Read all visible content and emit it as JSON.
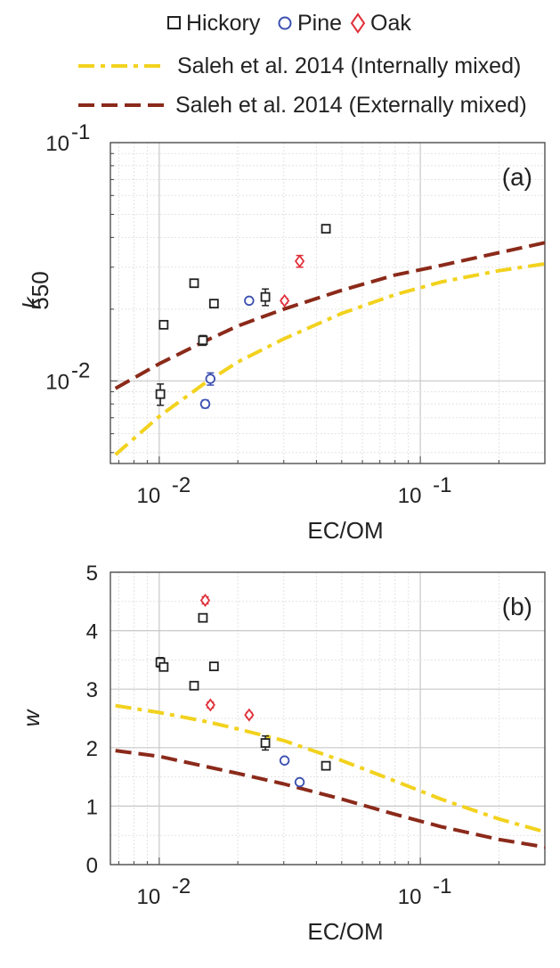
{
  "legend": {
    "markers": [
      {
        "label": "Hickory",
        "marker": "square",
        "color": "#222222"
      },
      {
        "label": "Pine",
        "marker": "circle",
        "color": "#3a4fb0"
      },
      {
        "label": "Oak",
        "marker": "diamond",
        "color": "#e0303a"
      }
    ],
    "lines": [
      {
        "label": "Saleh et al. 2014 (Internally mixed)",
        "style": "dashdot",
        "color": "#f2d21e"
      },
      {
        "label": "Saleh et al. 2014 (Externally mixed)",
        "style": "dashed",
        "color": "#8b2a1a"
      }
    ]
  },
  "colors": {
    "hickory": "#222222",
    "pine": "#3a4fb0",
    "oak": "#e0303a",
    "internal": "#f2d21e",
    "external": "#8b2a1a",
    "grid_major": "#c8c8c8",
    "grid_minor": "#e3e3e3"
  },
  "chart_data": [
    {
      "type": "scatter",
      "panel_label": "(a)",
      "xlabel": "EC/OM",
      "ylabel": "k",
      "ylabel_subscript": "550",
      "xscale": "log",
      "yscale": "log",
      "xlim": [
        0.0065,
        0.3
      ],
      "ylim": [
        0.0045,
        0.1
      ],
      "x_tick_labels": [
        {
          "value": 0.01,
          "base": "10",
          "exp": "-2"
        },
        {
          "value": 0.1,
          "base": "10",
          "exp": "-1"
        }
      ],
      "y_tick_labels": [
        {
          "value": 0.01,
          "base": "10",
          "exp": "-2"
        },
        {
          "value": 0.1,
          "base": "10",
          "exp": "-1"
        }
      ],
      "grid": true,
      "series": [
        {
          "name": "Hickory",
          "marker": "square",
          "points": [
            {
              "x": 0.0101,
              "y": 0.0088,
              "err": 0.0009
            },
            {
              "x": 0.0104,
              "y": 0.0172,
              "err": 0.0003
            },
            {
              "x": 0.0136,
              "y": 0.0257,
              "err": 0.0007
            },
            {
              "x": 0.0147,
              "y": 0.0148,
              "err": 0.0007
            },
            {
              "x": 0.0162,
              "y": 0.0211,
              "err": 0.0004
            },
            {
              "x": 0.0255,
              "y": 0.0225,
              "err": 0.0018
            },
            {
              "x": 0.0435,
              "y": 0.0435,
              "err": 0.0007
            }
          ]
        },
        {
          "name": "Pine",
          "marker": "circle",
          "points": [
            {
              "x": 0.015,
              "y": 0.008,
              "err": 0.0003
            },
            {
              "x": 0.0157,
              "y": 0.0102,
              "err": 0.0006
            },
            {
              "x": 0.0221,
              "y": 0.0217,
              "err": 0.0006
            }
          ]
        },
        {
          "name": "Oak",
          "marker": "diamond",
          "points": [
            {
              "x": 0.0302,
              "y": 0.0217,
              "err": 0.0005
            },
            {
              "x": 0.0345,
              "y": 0.0318,
              "err": 0.0018
            }
          ]
        },
        {
          "name": "Saleh et al. 2014 (Internally mixed)",
          "line": "dashdot",
          "x": [
            0.0068,
            0.01,
            0.015,
            0.02,
            0.03,
            0.05,
            0.08,
            0.12,
            0.2,
            0.3
          ],
          "y": [
            0.0049,
            0.0071,
            0.0098,
            0.012,
            0.015,
            0.0192,
            0.023,
            0.026,
            0.029,
            0.031
          ]
        },
        {
          "name": "Saleh et al. 2014 (Externally mixed)",
          "line": "dashed",
          "x": [
            0.0068,
            0.01,
            0.015,
            0.02,
            0.03,
            0.05,
            0.08,
            0.12,
            0.2,
            0.3
          ],
          "y": [
            0.0093,
            0.0118,
            0.0147,
            0.017,
            0.02,
            0.024,
            0.0278,
            0.0305,
            0.0345,
            0.038
          ]
        }
      ]
    },
    {
      "type": "scatter",
      "panel_label": "(b)",
      "xlabel": "EC/OM",
      "ylabel": "w",
      "xscale": "log",
      "yscale": "linear",
      "xlim": [
        0.0065,
        0.3
      ],
      "ylim": [
        0,
        5
      ],
      "x_tick_labels": [
        {
          "value": 0.01,
          "base": "10",
          "exp": "-2"
        },
        {
          "value": 0.1,
          "base": "10",
          "exp": "-1"
        }
      ],
      "y_ticks": [
        0,
        1,
        2,
        3,
        4,
        5
      ],
      "grid": true,
      "series": [
        {
          "name": "Hickory",
          "marker": "square",
          "points": [
            {
              "x": 0.0101,
              "y": 3.46,
              "err": 0.08
            },
            {
              "x": 0.0104,
              "y": 3.38,
              "err": 0.04
            },
            {
              "x": 0.0136,
              "y": 3.06,
              "err": 0.03
            },
            {
              "x": 0.0147,
              "y": 4.22,
              "err": 0.04
            },
            {
              "x": 0.0162,
              "y": 3.39,
              "err": 0.04
            },
            {
              "x": 0.0255,
              "y": 2.08,
              "err": 0.12
            },
            {
              "x": 0.0435,
              "y": 1.69,
              "err": 0.05
            }
          ]
        },
        {
          "name": "Pine",
          "marker": "circle",
          "points": [
            {
              "x": 0.0302,
              "y": 1.78,
              "err": 0.03
            },
            {
              "x": 0.0345,
              "y": 1.41,
              "err": 0.03
            }
          ]
        },
        {
          "name": "Oak",
          "marker": "diamond",
          "points": [
            {
              "x": 0.015,
              "y": 4.52,
              "err": 0.06
            },
            {
              "x": 0.0157,
              "y": 2.73,
              "err": 0.05
            },
            {
              "x": 0.0221,
              "y": 2.56,
              "err": 0.04
            }
          ]
        },
        {
          "name": "Saleh et al. 2014 (Internally mixed)",
          "line": "dashdot",
          "x": [
            0.0068,
            0.01,
            0.015,
            0.02,
            0.03,
            0.05,
            0.08,
            0.12,
            0.2,
            0.3
          ],
          "y": [
            2.72,
            2.6,
            2.45,
            2.32,
            2.12,
            1.78,
            1.43,
            1.12,
            0.78,
            0.56
          ]
        },
        {
          "name": "Saleh et al. 2014 (Externally mixed)",
          "line": "dashed",
          "x": [
            0.0068,
            0.01,
            0.015,
            0.02,
            0.03,
            0.05,
            0.08,
            0.12,
            0.2,
            0.3
          ],
          "y": [
            1.95,
            1.85,
            1.68,
            1.56,
            1.38,
            1.12,
            0.86,
            0.65,
            0.43,
            0.3
          ]
        }
      ]
    }
  ]
}
